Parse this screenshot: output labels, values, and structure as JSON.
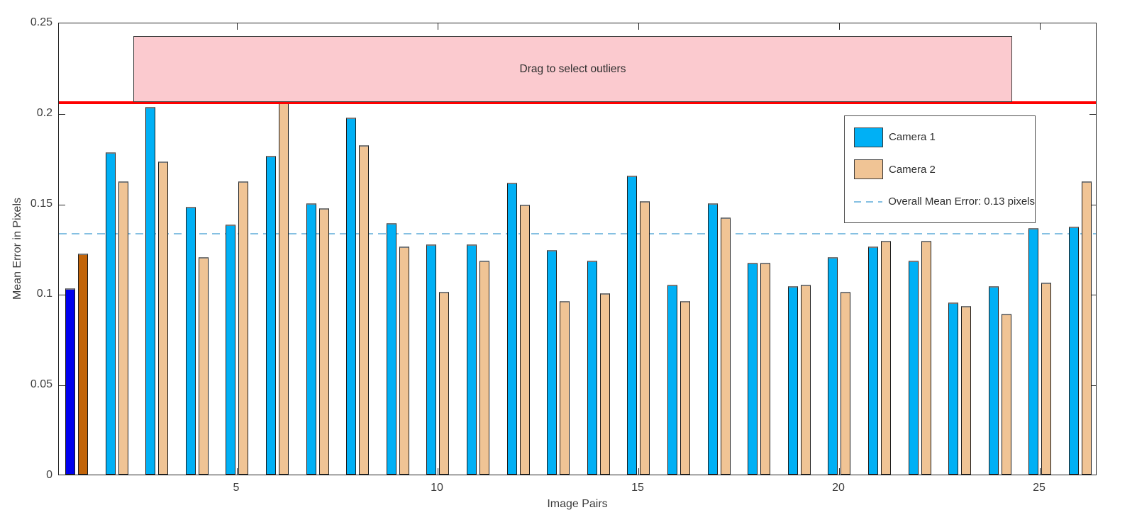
{
  "chart_data": {
    "type": "bar",
    "title": "",
    "xlabel": "Image Pairs",
    "ylabel": "Mean Error in Pixels",
    "ylim": [
      0,
      0.25
    ],
    "ytick_values": [
      0,
      0.05,
      0.1,
      0.15,
      0.2,
      0.25
    ],
    "ytick_labels": [
      "0",
      "0.05",
      "0.1",
      "0.15",
      "0.2",
      "0.25"
    ],
    "xtick_values": [
      5,
      10,
      15,
      20,
      25
    ],
    "xtick_labels": [
      "5",
      "10",
      "15",
      "20",
      "25"
    ],
    "grid": false,
    "legend_position": "upper right",
    "categories": [
      1,
      2,
      3,
      4,
      5,
      6,
      7,
      8,
      9,
      10,
      11,
      12,
      13,
      14,
      15,
      16,
      17,
      18,
      19,
      20,
      21,
      22,
      23,
      24,
      25,
      26
    ],
    "series": [
      {
        "name": "Camera 1",
        "color": "#00b0f5",
        "values": [
          0.103,
          0.178,
          0.203,
          0.148,
          0.138,
          0.176,
          0.15,
          0.197,
          0.139,
          0.127,
          0.127,
          0.161,
          0.124,
          0.118,
          0.165,
          0.105,
          0.15,
          0.117,
          0.104,
          0.12,
          0.126,
          0.118,
          0.095,
          0.104,
          0.136,
          0.137
        ]
      },
      {
        "name": "Camera 2",
        "color": "#f0c495",
        "values": [
          0.122,
          0.162,
          0.173,
          0.12,
          0.162,
          0.207,
          0.147,
          0.182,
          0.126,
          0.101,
          0.118,
          0.149,
          0.096,
          0.1,
          0.151,
          0.096,
          0.142,
          0.117,
          0.105,
          0.101,
          0.129,
          0.129,
          0.093,
          0.089,
          0.106,
          0.162
        ]
      }
    ],
    "selected_pair": {
      "index": 1,
      "camera1_color": "#0000ee",
      "camera2_color": "#c26408"
    },
    "mean_line": {
      "value": 0.134,
      "color": "#85c0e2",
      "style": "dashed"
    },
    "threshold_line": {
      "value": 0.207,
      "color": "#fe0000"
    },
    "selection_overlay": {
      "label": "Drag to select outliers",
      "fill": "#fbcacf",
      "y_bottom_value": 0.207,
      "y_top_value": 0.243,
      "x_start_pair": 2.7,
      "x_end_pair": 24.3
    }
  },
  "legend": {
    "items": [
      {
        "type": "swatch",
        "label": "Camera 1",
        "color": "#00b0f5"
      },
      {
        "type": "swatch",
        "label": "Camera 2",
        "color": "#f0c495"
      },
      {
        "type": "dash",
        "label": "Overall Mean Error: 0.13 pixels",
        "color": "#85c0e2"
      }
    ]
  },
  "axes": {
    "xlabel": "Image Pairs",
    "ylabel": "Mean Error in Pixels"
  },
  "overlay": {
    "label": "Drag to select outliers"
  }
}
